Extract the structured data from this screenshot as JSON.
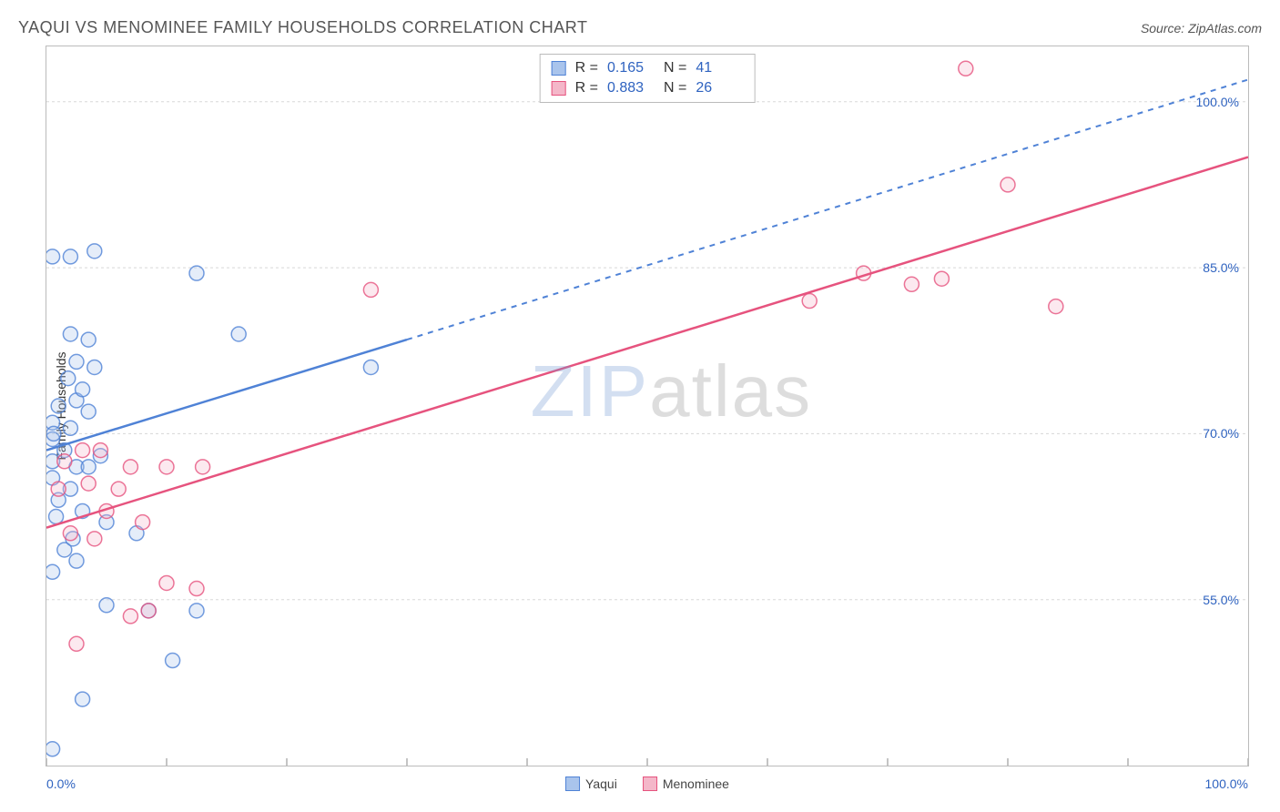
{
  "title": "YAQUI VS MENOMINEE FAMILY HOUSEHOLDS CORRELATION CHART",
  "source": "Source: ZipAtlas.com",
  "ylabel": "Family Households",
  "watermark": {
    "part1": "ZIP",
    "part2": "atlas"
  },
  "chart": {
    "type": "scatter",
    "background_color": "#ffffff",
    "grid_color": "#d8d8d8",
    "axis_border_color": "#bbbbbb",
    "label_color": "#2f63c0",
    "title_fontsize": 18,
    "label_fontsize": 14,
    "xlim": [
      0,
      100
    ],
    "ylim": [
      40,
      105
    ],
    "x_ticks_minor": [
      10,
      20,
      30,
      40,
      50,
      60,
      70,
      80,
      90
    ],
    "x_ticks_major": [
      0,
      100
    ],
    "x_tick_labels": {
      "0": "0.0%",
      "100": "100.0%"
    },
    "y_ticks": [
      55,
      70,
      85,
      100
    ],
    "y_tick_labels": {
      "55": "55.0%",
      "70": "70.0%",
      "85": "85.0%",
      "100": "100.0%"
    },
    "marker_radius": 8,
    "marker_fill_opacity": 0.3,
    "marker_stroke_width": 1.5,
    "trend_line_width": 2.5,
    "series": [
      {
        "name": "Yaqui",
        "color": "#4f82d6",
        "fill": "#a9c4ec",
        "R": "0.165",
        "N": "41",
        "trend": {
          "solid": {
            "x1": 0,
            "y1": 68.5,
            "x2": 30,
            "y2": 78.5
          },
          "dashed": {
            "x1": 30,
            "y1": 78.5,
            "x2": 100,
            "y2": 102
          },
          "dash_pattern": "6,6"
        },
        "points": [
          [
            0.5,
            86.0
          ],
          [
            2.0,
            86.0
          ],
          [
            4.0,
            86.5
          ],
          [
            12.5,
            84.5
          ],
          [
            2.0,
            79.0
          ],
          [
            3.5,
            78.5
          ],
          [
            16.0,
            79.0
          ],
          [
            2.5,
            76.5
          ],
          [
            4.0,
            76.0
          ],
          [
            27.0,
            76.0
          ],
          [
            1.0,
            72.5
          ],
          [
            2.5,
            73.0
          ],
          [
            3.5,
            72.0
          ],
          [
            0.5,
            71.0
          ],
          [
            2.0,
            70.5
          ],
          [
            0.5,
            69.5
          ],
          [
            1.5,
            68.5
          ],
          [
            0.5,
            67.5
          ],
          [
            2.5,
            67.0
          ],
          [
            3.5,
            67.0
          ],
          [
            0.5,
            66.0
          ],
          [
            2.0,
            65.0
          ],
          [
            1.0,
            64.0
          ],
          [
            3.0,
            63.0
          ],
          [
            5.0,
            62.0
          ],
          [
            7.5,
            61.0
          ],
          [
            1.5,
            59.5
          ],
          [
            2.5,
            58.5
          ],
          [
            0.5,
            57.5
          ],
          [
            5.0,
            54.5
          ],
          [
            8.5,
            54.0
          ],
          [
            10.5,
            49.5
          ],
          [
            3.0,
            46.0
          ],
          [
            0.5,
            41.5
          ],
          [
            0.6,
            70.0
          ],
          [
            1.8,
            75.0
          ],
          [
            3.0,
            74.0
          ],
          [
            12.5,
            54.0
          ],
          [
            4.5,
            68.0
          ],
          [
            0.8,
            62.5
          ],
          [
            2.2,
            60.5
          ]
        ]
      },
      {
        "name": "Menominee",
        "color": "#e6537e",
        "fill": "#f4b7c9",
        "R": "0.883",
        "N": "26",
        "trend": {
          "solid": {
            "x1": 0,
            "y1": 61.5,
            "x2": 100,
            "y2": 95.0
          }
        },
        "points": [
          [
            27.0,
            83.0
          ],
          [
            63.5,
            82.0
          ],
          [
            72.0,
            83.5
          ],
          [
            74.5,
            84.0
          ],
          [
            80.0,
            92.5
          ],
          [
            84.0,
            81.5
          ],
          [
            76.5,
            103.0
          ],
          [
            3.0,
            68.5
          ],
          [
            4.5,
            68.5
          ],
          [
            7.0,
            67.0
          ],
          [
            10.0,
            67.0
          ],
          [
            13.0,
            67.0
          ],
          [
            5.0,
            63.0
          ],
          [
            8.0,
            62.0
          ],
          [
            2.0,
            61.0
          ],
          [
            4.0,
            60.5
          ],
          [
            10.0,
            56.5
          ],
          [
            12.5,
            56.0
          ],
          [
            7.0,
            53.5
          ],
          [
            8.5,
            54.0
          ],
          [
            2.5,
            51.0
          ],
          [
            1.5,
            67.5
          ],
          [
            1.0,
            65.0
          ],
          [
            3.5,
            65.5
          ],
          [
            6.0,
            65.0
          ],
          [
            68.0,
            84.5
          ]
        ]
      }
    ]
  },
  "legend": {
    "items": [
      {
        "label": "Yaqui",
        "color": "#4f82d6",
        "fill": "#a9c4ec"
      },
      {
        "label": "Menominee",
        "color": "#e6537e",
        "fill": "#f4b7c9"
      }
    ]
  },
  "stats_box": {
    "r_label": "R  =",
    "n_label": "N  ="
  }
}
